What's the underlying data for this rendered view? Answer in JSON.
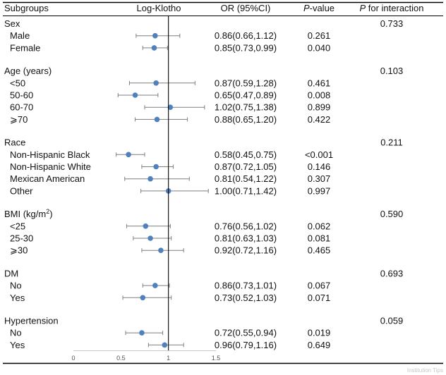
{
  "chart_data": {
    "type": "forest",
    "headers": {
      "subgroups": "Subgroups",
      "plot": "Log-Klotho",
      "or": "OR (95%CI)",
      "p_italic": "P",
      "p_rest": "-value",
      "pint_italic": "P",
      "pint_rest": " for interaction"
    },
    "xticks": [
      "0",
      "0.5",
      "1",
      "1.5"
    ],
    "xlim": [
      0,
      1.5
    ],
    "reference_line": 1,
    "rows": [
      {
        "kind": "group",
        "label": "Sex",
        "p_interaction": "0.733"
      },
      {
        "kind": "item",
        "label": "Male",
        "or": 0.86,
        "lo": 0.66,
        "hi": 1.12,
        "text": "0.86(0.66,1.12)",
        "p": "0.261"
      },
      {
        "kind": "item",
        "label": "Female",
        "or": 0.85,
        "lo": 0.73,
        "hi": 0.99,
        "text": "0.85(0.73,0.99)",
        "p": "0.040"
      },
      {
        "kind": "group",
        "label": "Age (years)",
        "p_interaction": "0.103"
      },
      {
        "kind": "item",
        "label": "<50",
        "or": 0.87,
        "lo": 0.59,
        "hi": 1.28,
        "text": "0.87(0.59,1.28)",
        "p": "0.461"
      },
      {
        "kind": "item",
        "label": "50-60",
        "or": 0.65,
        "lo": 0.47,
        "hi": 0.89,
        "text": "0.65(0.47,0.89)",
        "p": "0.008"
      },
      {
        "kind": "item",
        "label": "60-70",
        "or": 1.02,
        "lo": 0.75,
        "hi": 1.38,
        "text": "1.02(0.75,1.38)",
        "p": "0.899"
      },
      {
        "kind": "item",
        "label": "⩾70",
        "or": 0.88,
        "lo": 0.65,
        "hi": 1.2,
        "text": "0.88(0.65,1.20)",
        "p": "0.422"
      },
      {
        "kind": "group",
        "label": "Race",
        "p_interaction": "0.211"
      },
      {
        "kind": "item",
        "label": "Non-Hispanic Black",
        "or": 0.58,
        "lo": 0.45,
        "hi": 0.75,
        "text": "0.58(0.45,0.75)",
        "p": "<0.001"
      },
      {
        "kind": "item",
        "label": "Non-Hispanic White",
        "or": 0.87,
        "lo": 0.72,
        "hi": 1.05,
        "text": "0.87(0.72,1.05)",
        "p": "0.146"
      },
      {
        "kind": "item",
        "label": "Mexican American",
        "or": 0.81,
        "lo": 0.54,
        "hi": 1.22,
        "text": "0.81(0.54,1.22)",
        "p": "0.307"
      },
      {
        "kind": "item",
        "label": "Other",
        "or": 1.0,
        "lo": 0.71,
        "hi": 1.42,
        "text": "1.00(0.71,1.42)",
        "p": "0.997"
      },
      {
        "kind": "group",
        "label": "BMI (kg/m",
        "sup": "2",
        "label_end": ")",
        "p_interaction": "0.590"
      },
      {
        "kind": "item",
        "label": "<25",
        "or": 0.76,
        "lo": 0.56,
        "hi": 1.02,
        "text": "0.76(0.56,1.02)",
        "p": "0.062"
      },
      {
        "kind": "item",
        "label": "25-30",
        "or": 0.81,
        "lo": 0.63,
        "hi": 1.03,
        "text": "0.81(0.63,1.03)",
        "p": "0.081"
      },
      {
        "kind": "item",
        "label": "⩾30",
        "or": 0.92,
        "lo": 0.72,
        "hi": 1.16,
        "text": "0.92(0.72,1.16)",
        "p": "0.465"
      },
      {
        "kind": "group",
        "label": "DM",
        "p_interaction": "0.693"
      },
      {
        "kind": "item",
        "label": "No",
        "or": 0.86,
        "lo": 0.73,
        "hi": 1.01,
        "text": "0.86(0.73,1.01)",
        "p": "0.067"
      },
      {
        "kind": "item",
        "label": "Yes",
        "or": 0.73,
        "lo": 0.52,
        "hi": 1.03,
        "text": "0.73(0.52,1.03)",
        "p": "0.071"
      },
      {
        "kind": "group",
        "label": "Hypertension",
        "p_interaction": "0.059"
      },
      {
        "kind": "item",
        "label": "No",
        "or": 0.72,
        "lo": 0.55,
        "hi": 0.94,
        "text": "0.72(0.55,0.94)",
        "p": "0.019"
      },
      {
        "kind": "item",
        "label": "Yes",
        "or": 0.96,
        "lo": 0.79,
        "hi": 1.16,
        "text": "0.96(0.79,1.16)",
        "p": "0.649"
      }
    ]
  },
  "watermark": "Institution Tips",
  "colors": {
    "point": "#4f81bd",
    "ci": "#7f7f7f",
    "text": "#111111",
    "rule": "#000000"
  }
}
